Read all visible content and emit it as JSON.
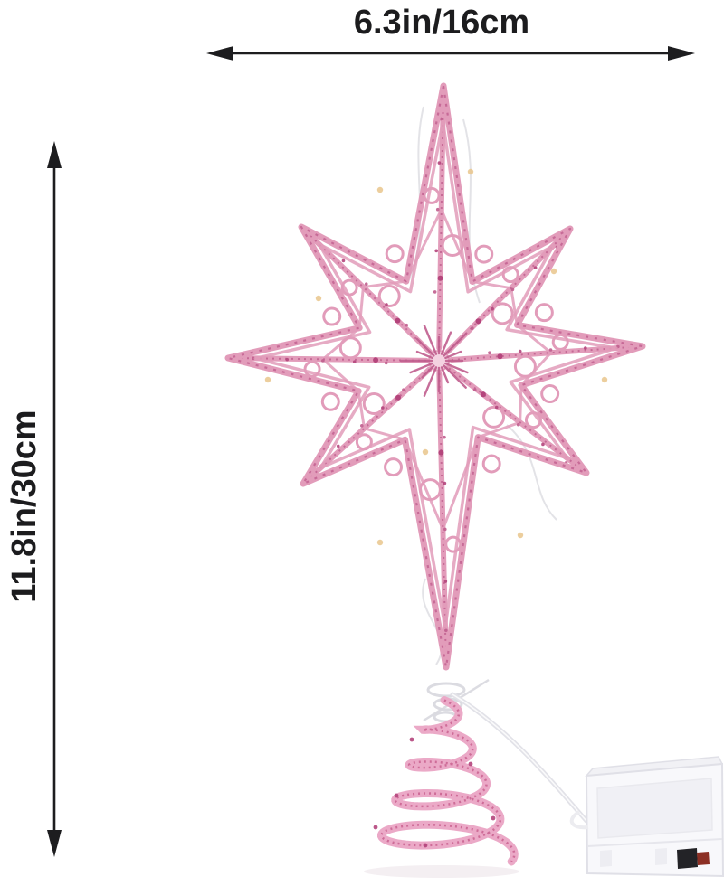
{
  "page": {
    "background": "#ffffff"
  },
  "annotations": {
    "width_label": "6.3in/16cm",
    "height_label": "11.8in/30cm",
    "arrow_color": "#1d1d1f",
    "text_color": "#1c1c1e"
  },
  "product": {
    "colors": {
      "star_main": "#e29cba",
      "star_dark": "#c05e8e",
      "star_light": "#f4d2e1",
      "sparkle": "#b4457c",
      "light_dot": "#e9c68c",
      "clear_wire": "#d9d9df",
      "spiral_main": "#eba9c7",
      "spiral_dark": "#c9618f",
      "cable": "#e2e2e8",
      "battery_box_body": "#f8f8fb",
      "battery_box_top": "#f1f1f5",
      "battery_box_edge": "#e0e0e7",
      "battery_box_seam": "#e6e6ec",
      "switch": "#232327",
      "switch_accent": "#8c2f24",
      "shadow": "#f4eff2"
    }
  }
}
